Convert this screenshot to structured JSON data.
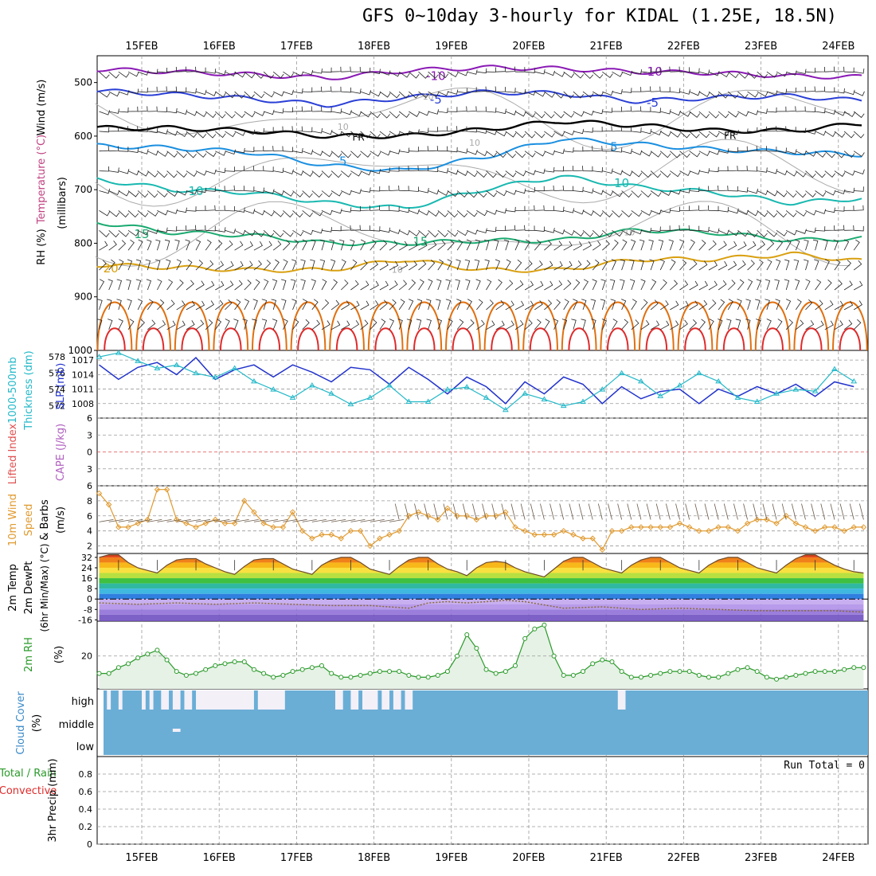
{
  "title": "GFS 0~10day 3-hourly for KIDAL (1.25E, 18.5N)",
  "date_labels": [
    "15FEB",
    "16FEB",
    "17FEB",
    "18FEB",
    "19FEB",
    "20FEB",
    "21FEB",
    "22FEB",
    "23FEB",
    "24FEB"
  ],
  "colors": {
    "grid": "#999999",
    "t_m10": "#8a19b5",
    "t_m5": "#2a3fd6",
    "t_fr": "#000000",
    "t_5": "#1a8fe0",
    "t_10": "#18b8b0",
    "t_15": "#1aaa70",
    "t_20": "#d9a010",
    "t_25": "#e07010",
    "t_30": "#e02a2a",
    "rh10": "#aaaaaa",
    "thickness": "#23b8c8",
    "slp": "#2233cc",
    "wind": "#e09a30",
    "temp_line": "#6b4a2a",
    "rh2m": "#2a9a2a",
    "rh_fill": "#e6f2e6",
    "cloud": "#6aaed6",
    "cloud_gap": "#f3f0f8",
    "zero_line": "#e05050"
  },
  "chart_data": [
    {
      "panel": "upper-air",
      "type": "line",
      "ylabel_parts": [
        "Wind (m/s)",
        "Temperature (°C)",
        "RH (%)"
      ],
      "ylabel_units": "(millibars)",
      "y_ticks": [
        500,
        600,
        700,
        800,
        900,
        1000
      ],
      "ylim": [
        450,
        1000
      ],
      "isotherm_labels": [
        "-10",
        "-5",
        "FR",
        "5",
        "10",
        "15",
        "20"
      ],
      "rh_labels": [
        "10"
      ],
      "isotherms": [
        {
          "name": "-10",
          "x": [
            0,
            1,
            2,
            3,
            4,
            5,
            6,
            7,
            8,
            9,
            10
          ],
          "y": [
            475,
            480,
            485,
            492,
            478,
            472,
            474,
            480,
            482,
            488,
            490
          ]
        },
        {
          "name": "-5",
          "x": [
            0,
            1,
            2,
            3,
            4,
            5,
            6,
            7,
            8,
            9,
            10
          ],
          "y": [
            515,
            522,
            530,
            542,
            528,
            518,
            520,
            535,
            528,
            525,
            535
          ]
        },
        {
          "name": "FR",
          "x": [
            0,
            1,
            2,
            3,
            4,
            5,
            6,
            7,
            8,
            9,
            10
          ],
          "y": [
            585,
            585,
            590,
            600,
            600,
            588,
            572,
            580,
            590,
            590,
            575
          ]
        },
        {
          "name": "5",
          "x": [
            0,
            1,
            2,
            3,
            4,
            5,
            6,
            7,
            8,
            9,
            10
          ],
          "y": [
            618,
            622,
            630,
            655,
            665,
            640,
            605,
            615,
            625,
            630,
            635
          ]
        },
        {
          "name": "10",
          "x": [
            0,
            1,
            2,
            3,
            4,
            5,
            6,
            7,
            8,
            9,
            10
          ],
          "y": [
            680,
            700,
            705,
            725,
            735,
            700,
            675,
            695,
            705,
            725,
            715
          ]
        },
        {
          "name": "15",
          "x": [
            0,
            1,
            2,
            3,
            4,
            5,
            6,
            7,
            8,
            9,
            10
          ],
          "y": [
            760,
            780,
            785,
            800,
            800,
            795,
            795,
            775,
            780,
            795,
            790
          ]
        },
        {
          "name": "20",
          "x": [
            0,
            1,
            2,
            3,
            4,
            5,
            6,
            7,
            8,
            9,
            10
          ],
          "y": [
            840,
            845,
            850,
            850,
            830,
            850,
            850,
            830,
            830,
            820,
            835
          ]
        }
      ]
    },
    {
      "panel": "slp-thickness",
      "type": "line",
      "ylabels": [
        "1000-500mb",
        "Thickness (dm)",
        "SLP (mb)"
      ],
      "y_ticks_left": [
        572,
        574,
        576,
        578
      ],
      "y_ticks_right": [
        1008,
        1011,
        1014,
        1017
      ],
      "ylim_right": [
        1005,
        1019
      ],
      "ylim_left": [
        570.5,
        578.8
      ],
      "x": [
        0,
        0.25,
        0.5,
        0.75,
        1,
        1.25,
        1.5,
        1.75,
        2,
        2.25,
        2.5,
        2.75,
        3,
        3.25,
        3.5,
        3.75,
        4,
        4.25,
        4.5,
        4.75,
        5,
        5.25,
        5.5,
        5.75,
        6,
        6.25,
        6.5,
        6.75,
        7,
        7.25,
        7.5,
        7.75,
        8,
        8.25,
        8.5,
        8.75,
        9,
        9.25,
        9.5,
        9.75
      ],
      "series": [
        {
          "name": "SLP (mb)",
          "axis": "right",
          "values": [
            1016,
            1013,
            1015.5,
            1016.5,
            1014,
            1017.5,
            1013,
            1015,
            1016,
            1013.5,
            1016,
            1014.5,
            1012.5,
            1015.5,
            1015,
            1012,
            1015.5,
            1013,
            1010,
            1013.5,
            1011.5,
            1008,
            1012.5,
            1010,
            1013.5,
            1012,
            1008,
            1011.5,
            1009,
            1010.5,
            1011,
            1008,
            1011,
            1009.5,
            1011.5,
            1010,
            1012,
            1009.5,
            1012.5,
            1011.5
          ]
        },
        {
          "name": "1000-500mb Thickness (dm)",
          "axis": "left",
          "values": [
            578,
            578.5,
            577.5,
            576.6,
            577,
            576,
            575.5,
            576.6,
            575,
            574,
            573,
            574.5,
            573.5,
            572.2,
            573,
            574.5,
            572.5,
            572.5,
            574,
            574.3,
            573,
            571.5,
            573.5,
            572.8,
            572,
            572.5,
            574,
            576,
            575,
            573.2,
            574.5,
            576,
            575,
            573,
            572.5,
            573.5,
            574,
            573.8,
            576.5,
            575
          ]
        }
      ]
    },
    {
      "panel": "cape-lifted-index",
      "type": "line",
      "ylabels": [
        "Lifted Index",
        "CAPE (J/kg)"
      ],
      "y_ticks": [
        6,
        3,
        0,
        -3,
        -6
      ],
      "ylim": [
        -6,
        6
      ]
    },
    {
      "panel": "10m-wind",
      "type": "line",
      "ylabels": [
        "10m Wind",
        "Speed",
        "& Barbs",
        "(m/s)"
      ],
      "y_ticks": [
        2,
        4,
        6,
        8
      ],
      "ylim": [
        1,
        10
      ],
      "x": [
        0,
        0.125,
        0.25,
        0.375,
        0.5,
        0.625,
        0.75,
        0.875,
        1,
        1.125,
        1.25,
        1.375,
        1.5,
        1.625,
        1.75,
        1.875,
        2,
        2.125,
        2.25,
        2.375,
        2.5,
        2.625,
        2.75,
        2.875,
        3,
        3.125,
        3.25,
        3.375,
        3.5,
        3.625,
        3.75,
        3.875,
        4,
        4.125,
        4.25,
        4.375,
        4.5,
        4.625,
        4.75,
        4.875,
        5,
        5.125,
        5.25,
        5.375,
        5.5,
        5.625,
        5.75,
        5.875,
        6,
        6.125,
        6.25,
        6.375,
        6.5,
        6.625,
        6.75,
        6.875,
        7,
        7.125,
        7.25,
        7.375,
        7.5,
        7.625,
        7.75,
        7.875,
        8,
        8.125,
        8.25,
        8.375,
        8.5,
        8.625,
        8.75,
        8.875,
        9,
        9.125,
        9.25,
        9.375,
        9.5,
        9.625,
        9.75,
        9.875
      ],
      "values": [
        9,
        7.5,
        4.5,
        4.5,
        5,
        5.5,
        9.5,
        9.5,
        5.5,
        5,
        4.5,
        5,
        5.5,
        5,
        5,
        8,
        6.5,
        5,
        4.5,
        4.5,
        6.5,
        4,
        3,
        3.5,
        3.5,
        3,
        4,
        4,
        2,
        3,
        3.5,
        4,
        6,
        6.5,
        6,
        5.5,
        7,
        6,
        6,
        5.5,
        6,
        6,
        6.5,
        4.5,
        4,
        3.5,
        3.5,
        3.5,
        4,
        3.5,
        3,
        3,
        1.5,
        4,
        4,
        4.5,
        4.5,
        4.5,
        4.5,
        4.5,
        5,
        4.5,
        4,
        4,
        4.5,
        4.5,
        4,
        5,
        5.5,
        5.5,
        5,
        6,
        5,
        4.5,
        4,
        4.5,
        4.5,
        4,
        4.5,
        4.5
      ]
    },
    {
      "panel": "2m-temp",
      "type": "area",
      "ylabels": [
        "2m Temp",
        "2m DewPt",
        "(6hr Min/Max) (°C)"
      ],
      "y_ticks": [
        32,
        24,
        16,
        8,
        0,
        -8,
        -16
      ],
      "ylim": [
        -17,
        35
      ],
      "temp_x": [
        0,
        0.125,
        0.25,
        0.375,
        0.5,
        0.625,
        0.75,
        0.875,
        1,
        1.125,
        1.25,
        1.375,
        1.5,
        1.625,
        1.75,
        1.875,
        2,
        2.125,
        2.25,
        2.375,
        2.5,
        2.625,
        2.75,
        2.875,
        3,
        3.125,
        3.25,
        3.375,
        3.5,
        3.625,
        3.75,
        3.875,
        4,
        4.125,
        4.25,
        4.375,
        4.5,
        4.625,
        4.75,
        4.875,
        5,
        5.125,
        5.25,
        5.375,
        5.5,
        5.625,
        5.75,
        5.875,
        6,
        6.125,
        6.25,
        6.375,
        6.5,
        6.625,
        6.75,
        6.875,
        7,
        7.125,
        7.25,
        7.375,
        7.5,
        7.625,
        7.75,
        7.875,
        8,
        8.125,
        8.25,
        8.375,
        8.5,
        8.625,
        8.75,
        8.875,
        9,
        9.125,
        9.25,
        9.375,
        9.5,
        9.625,
        9.75,
        9.875
      ],
      "temp_values": [
        32,
        34,
        34,
        28,
        24,
        22,
        20,
        26,
        30,
        31,
        31,
        27,
        24,
        21,
        19,
        25,
        30,
        31,
        31,
        27,
        23,
        21,
        19,
        26,
        30,
        32,
        32,
        28,
        23,
        21,
        19,
        25,
        30,
        32,
        32,
        27,
        23,
        21,
        18,
        24,
        28,
        29,
        28,
        24,
        21,
        19,
        17,
        23,
        29,
        32,
        32,
        28,
        24,
        22,
        20,
        26,
        30,
        32,
        32,
        28,
        24,
        22,
        20,
        26,
        30,
        32,
        32,
        28,
        24,
        22,
        20,
        26,
        31,
        34,
        34,
        30,
        26,
        23,
        21,
        20
      ],
      "dewpoint_x": [
        0,
        0.5,
        1,
        1.5,
        2,
        2.5,
        3,
        3.5,
        4,
        4.25,
        4.5,
        4.75,
        5,
        5.25,
        5.5,
        6,
        6.5,
        7,
        7.5,
        8,
        8.5,
        9,
        9.5,
        9.875
      ],
      "dewpoint_values": [
        -3,
        -4,
        -3,
        -4,
        -3,
        -4,
        -5,
        -5,
        -7,
        -3,
        -2,
        -3,
        -2,
        -1,
        -2,
        -7,
        -6,
        -8,
        -7,
        -8,
        -9,
        -9,
        -9,
        -10
      ]
    },
    {
      "panel": "2m-rh",
      "type": "area",
      "ylabels": [
        "2m RH",
        "(%)"
      ],
      "y_ticks": [
        20
      ],
      "ylim": [
        3,
        38
      ],
      "x": [
        0,
        0.125,
        0.25,
        0.375,
        0.5,
        0.625,
        0.75,
        0.875,
        1,
        1.125,
        1.25,
        1.375,
        1.5,
        1.625,
        1.75,
        1.875,
        2,
        2.125,
        2.25,
        2.375,
        2.5,
        2.625,
        2.75,
        2.875,
        3,
        3.125,
        3.25,
        3.375,
        3.5,
        3.625,
        3.75,
        3.875,
        4,
        4.125,
        4.25,
        4.375,
        4.5,
        4.625,
        4.75,
        4.875,
        5,
        5.125,
        5.25,
        5.375,
        5.5,
        5.625,
        5.75,
        5.875,
        6,
        6.125,
        6.25,
        6.375,
        6.5,
        6.625,
        6.75,
        6.875,
        7,
        7.125,
        7.25,
        7.375,
        7.5,
        7.625,
        7.75,
        7.875,
        8,
        8.125,
        8.25,
        8.375,
        8.5,
        8.625,
        8.75,
        8.875,
        9,
        9.125,
        9.25,
        9.375,
        9.5,
        9.625,
        9.75,
        9.875
      ],
      "values": [
        11,
        11,
        14,
        16,
        19,
        21,
        23,
        18,
        12,
        10,
        11,
        13,
        15,
        16,
        17,
        17,
        13,
        11,
        9,
        10,
        12,
        13,
        14,
        15,
        11,
        9,
        9,
        10,
        11,
        12,
        12,
        12,
        10,
        9,
        9,
        10,
        12,
        20,
        31,
        24,
        13,
        11,
        12,
        15,
        29,
        34,
        36,
        20,
        10,
        10,
        12,
        16,
        18,
        17,
        12,
        9,
        9,
        10,
        11,
        12,
        12,
        12,
        10,
        9,
        9,
        11,
        13,
        14,
        12,
        9,
        8,
        9,
        10,
        11,
        12,
        12,
        12,
        13,
        14,
        14
      ]
    },
    {
      "panel": "cloud-cover",
      "type": "area",
      "ylabels": [
        "Cloud Cover",
        "(%)"
      ],
      "layer_labels": [
        "high",
        "middle",
        "low"
      ],
      "high_gaps": [
        [
          0.1,
          0.15
        ],
        [
          0.25,
          0.3
        ],
        [
          0.55,
          0.6
        ],
        [
          0.65,
          0.7
        ],
        [
          0.8,
          0.9
        ],
        [
          0.95,
          1.05
        ],
        [
          1.1,
          1.2
        ],
        [
          1.25,
          2.0
        ],
        [
          2.05,
          2.4
        ],
        [
          3.05,
          3.15
        ],
        [
          3.25,
          3.35
        ],
        [
          3.4,
          3.6
        ],
        [
          3.65,
          3.75
        ],
        [
          3.8,
          3.9
        ],
        [
          3.95,
          4.05
        ],
        [
          6.7,
          6.8
        ]
      ],
      "middle_gaps": [
        [
          0.95,
          1.05
        ]
      ]
    },
    {
      "panel": "precip",
      "type": "bar",
      "ylabels": [
        "Total / Rain",
        "Convective",
        "3hr Precip (mm)"
      ],
      "y_ticks": [
        0,
        0.2,
        0.4,
        0.6,
        0.8
      ],
      "ylim": [
        0,
        1
      ],
      "run_total": "Run Total = 0",
      "values": []
    }
  ]
}
